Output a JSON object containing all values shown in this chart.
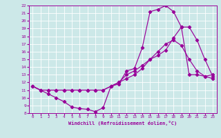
{
  "bg_color": "#cce8e8",
  "line_color": "#990099",
  "grid_color": "#ffffff",
  "xlabel": "Windchill (Refroidissement éolien,°C)",
  "xlabel_color": "#990099",
  "xlim": [
    -0.5,
    23.5
  ],
  "ylim": [
    8,
    22
  ],
  "xticks": [
    0,
    1,
    2,
    3,
    4,
    5,
    6,
    7,
    8,
    9,
    10,
    11,
    12,
    13,
    14,
    15,
    16,
    17,
    18,
    19,
    20,
    21,
    22,
    23
  ],
  "yticks": [
    8,
    9,
    10,
    11,
    12,
    13,
    14,
    15,
    16,
    17,
    18,
    19,
    20,
    21,
    22
  ],
  "line1_x": [
    0,
    1,
    2,
    3,
    4,
    5,
    6,
    7,
    8,
    9,
    10,
    11,
    12,
    13,
    14,
    15,
    16,
    17,
    18,
    19,
    20,
    21,
    22,
    23
  ],
  "line1_y": [
    11.5,
    11.0,
    10.5,
    10.0,
    9.5,
    8.8,
    8.6,
    8.5,
    8.2,
    8.7,
    11.5,
    11.8,
    13.5,
    13.8,
    16.5,
    21.2,
    21.5,
    22.0,
    21.2,
    19.2,
    13.0,
    13.0,
    12.8,
    13.0
  ],
  "line2_x": [
    0,
    1,
    2,
    3,
    4,
    5,
    6,
    7,
    8,
    9,
    10,
    11,
    12,
    13,
    14,
    15,
    16,
    17,
    18,
    19,
    20,
    21,
    22,
    23
  ],
  "line2_y": [
    11.5,
    11.0,
    11.0,
    11.0,
    11.0,
    11.0,
    11.0,
    11.0,
    11.0,
    11.0,
    11.5,
    12.0,
    12.5,
    13.0,
    13.8,
    15.0,
    16.0,
    17.0,
    17.5,
    16.8,
    15.0,
    13.5,
    12.8,
    12.5
  ],
  "line3_x": [
    0,
    1,
    2,
    3,
    4,
    5,
    6,
    7,
    8,
    9,
    10,
    11,
    12,
    13,
    14,
    15,
    16,
    17,
    18,
    19,
    20,
    21,
    22,
    23
  ],
  "line3_y": [
    11.5,
    11.0,
    11.0,
    11.0,
    11.0,
    11.0,
    11.0,
    11.0,
    11.0,
    11.0,
    11.5,
    12.0,
    13.0,
    13.5,
    14.2,
    15.0,
    15.5,
    16.2,
    17.8,
    19.2,
    19.2,
    17.5,
    15.0,
    12.8
  ]
}
